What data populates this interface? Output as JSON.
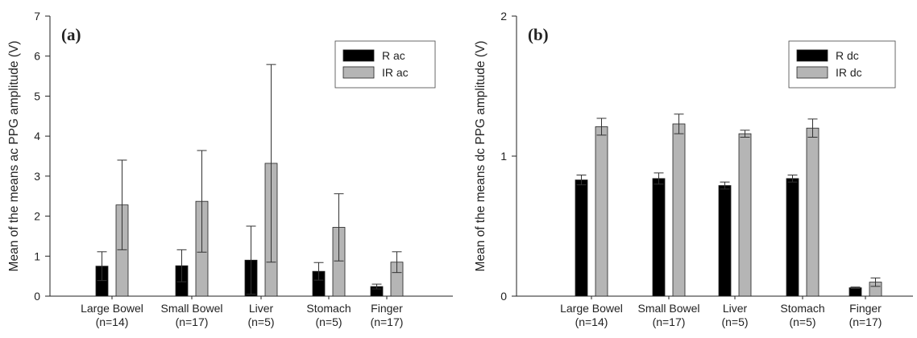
{
  "chart_data": [
    {
      "type": "bar",
      "panel_label": "(a)",
      "ylabel": "Mean of the means ac PPG amplitude (V)",
      "xlabel": "",
      "ylim": [
        0,
        7
      ],
      "yticks": [
        "0",
        "1",
        "2",
        "3",
        "4",
        "5",
        "6",
        "7"
      ],
      "categories": [
        "Large Bowel",
        "Small Bowel",
        "Liver",
        "Stomach",
        "Finger"
      ],
      "category_counts": [
        "(n=14)",
        "(n=17)",
        "(n=5)",
        "(n=5)",
        "(n=17)"
      ],
      "legend_position": "top-right",
      "series": [
        {
          "name": "R ac",
          "color": "#000000",
          "values": [
            0.75,
            0.76,
            0.9,
            0.62,
            0.24
          ],
          "error": [
            0.36,
            0.4,
            0.85,
            0.22,
            0.06
          ]
        },
        {
          "name": "IR ac",
          "color": "#b5b5b5",
          "values": [
            2.28,
            2.37,
            3.32,
            1.72,
            0.85
          ],
          "error": [
            1.12,
            1.27,
            2.47,
            0.84,
            0.26
          ]
        }
      ]
    },
    {
      "type": "bar",
      "panel_label": "(b)",
      "ylabel": "Mean of the means dc PPG amplitude (V)",
      "xlabel": "",
      "ylim": [
        0,
        2
      ],
      "yticks": [
        "0",
        "1",
        "2"
      ],
      "categories": [
        "Large Bowel",
        "Small Bowel",
        "Liver",
        "Stomach",
        "Finger"
      ],
      "category_counts": [
        "(n=14)",
        "(n=17)",
        "(n=5)",
        "(n=5)",
        "(n=17)"
      ],
      "legend_position": "top-right",
      "series": [
        {
          "name": "R dc",
          "color": "#000000",
          "values": [
            0.83,
            0.84,
            0.79,
            0.84,
            0.06
          ],
          "error": [
            0.035,
            0.04,
            0.025,
            0.025,
            0.005
          ]
        },
        {
          "name": "IR dc",
          "color": "#b5b5b5",
          "values": [
            1.21,
            1.23,
            1.16,
            1.2,
            0.1
          ],
          "error": [
            0.06,
            0.07,
            0.025,
            0.065,
            0.03
          ]
        }
      ]
    }
  ]
}
